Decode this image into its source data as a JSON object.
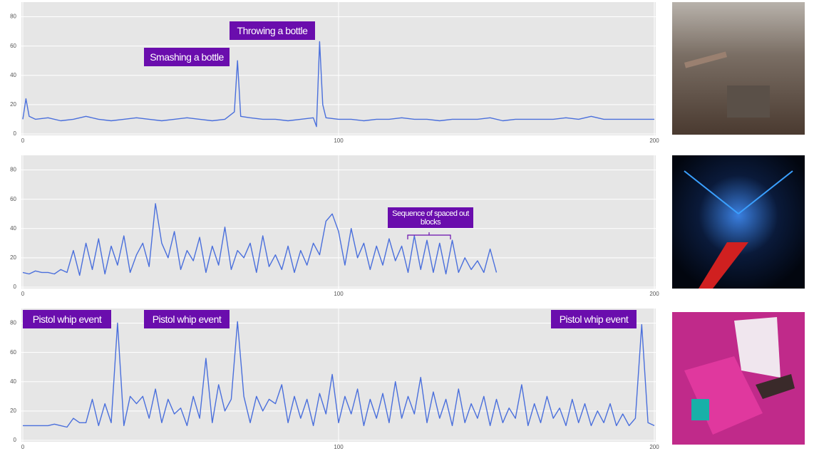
{
  "chart_data": [
    {
      "type": "line",
      "color": "#4a6fdc",
      "grid": true,
      "xlim": [
        0,
        200
      ],
      "ylim": [
        -1,
        90
      ],
      "xticks": [
        0,
        100,
        200
      ],
      "yticks": [
        0,
        20,
        40,
        60,
        80
      ],
      "annotations": [
        "Smashing a bottle",
        "Throwing a bottle"
      ],
      "x": [
        0,
        1,
        2,
        4,
        8,
        12,
        16,
        20,
        24,
        28,
        32,
        36,
        40,
        44,
        48,
        52,
        56,
        60,
        64,
        67,
        68,
        69,
        72,
        76,
        80,
        84,
        88,
        92,
        93,
        94,
        95,
        96,
        100,
        104,
        108,
        112,
        116,
        120,
        124,
        128,
        132,
        136,
        140,
        144,
        148,
        152,
        156,
        160,
        164,
        168,
        172,
        176,
        180,
        184,
        188,
        192,
        196,
        200
      ],
      "values": [
        10,
        24,
        12,
        10,
        11,
        9,
        10,
        12,
        10,
        9,
        10,
        11,
        10,
        9,
        10,
        11,
        10,
        9,
        10,
        15,
        50,
        12,
        11,
        10,
        10,
        9,
        10,
        11,
        5,
        63,
        20,
        11,
        10,
        10,
        9,
        10,
        10,
        11,
        10,
        10,
        9,
        10,
        10,
        10,
        11,
        9,
        10,
        10,
        10,
        10,
        11,
        10,
        12,
        10,
        10,
        10,
        10,
        10
      ]
    },
    {
      "type": "line",
      "color": "#4a6fdc",
      "grid": true,
      "xlim": [
        0,
        200
      ],
      "ylim": [
        -1,
        90
      ],
      "xticks": [
        0,
        100,
        200
      ],
      "yticks": [
        0,
        20,
        40,
        60,
        80
      ],
      "annotations": [
        "Sequence of spaced out blocks"
      ],
      "x": [
        0,
        2,
        4,
        6,
        8,
        10,
        12,
        14,
        16,
        18,
        20,
        22,
        24,
        26,
        28,
        30,
        32,
        34,
        36,
        38,
        40,
        42,
        44,
        46,
        48,
        50,
        52,
        54,
        56,
        58,
        60,
        62,
        64,
        66,
        68,
        70,
        72,
        74,
        76,
        78,
        80,
        82,
        84,
        86,
        88,
        90,
        92,
        94,
        96,
        98,
        100,
        102,
        104,
        106,
        108,
        110,
        112,
        114,
        116,
        118,
        120,
        122,
        124,
        126,
        128,
        130,
        132,
        134,
        136,
        138,
        140,
        142,
        144,
        146,
        148,
        150
      ],
      "values": [
        10,
        9,
        11,
        10,
        10,
        9,
        12,
        10,
        25,
        8,
        30,
        12,
        33,
        9,
        28,
        15,
        35,
        10,
        22,
        30,
        14,
        57,
        30,
        20,
        38,
        12,
        25,
        18,
        34,
        10,
        28,
        15,
        41,
        12,
        25,
        20,
        30,
        10,
        35,
        14,
        22,
        12,
        28,
        10,
        25,
        15,
        30,
        22,
        45,
        50,
        38,
        15,
        40,
        20,
        30,
        12,
        28,
        15,
        33,
        18,
        28,
        10,
        35,
        12,
        32,
        10,
        30,
        9,
        32,
        10,
        20,
        12,
        18,
        10,
        26,
        10
      ]
    },
    {
      "type": "line",
      "color": "#4a6fdc",
      "grid": true,
      "xlim": [
        0,
        200
      ],
      "ylim": [
        -1,
        90
      ],
      "xticks": [
        0,
        100,
        200
      ],
      "yticks": [
        0,
        20,
        40,
        60,
        80
      ],
      "annotations": [
        "Pistol whip event",
        "Pistol whip event",
        "Pistol whip event"
      ],
      "x": [
        0,
        2,
        4,
        6,
        8,
        10,
        12,
        14,
        16,
        18,
        20,
        22,
        24,
        26,
        28,
        30,
        32,
        34,
        36,
        38,
        40,
        42,
        44,
        46,
        48,
        50,
        52,
        54,
        56,
        58,
        60,
        62,
        64,
        66,
        68,
        70,
        72,
        74,
        76,
        78,
        80,
        82,
        84,
        86,
        88,
        90,
        92,
        94,
        96,
        98,
        100,
        102,
        104,
        106,
        108,
        110,
        112,
        114,
        116,
        118,
        120,
        122,
        124,
        126,
        128,
        130,
        132,
        134,
        136,
        138,
        140,
        142,
        144,
        146,
        148,
        150,
        152,
        154,
        156,
        158,
        160,
        162,
        164,
        166,
        168,
        170,
        172,
        174,
        176,
        178,
        180,
        182,
        184,
        186,
        188,
        190,
        192,
        194,
        196,
        198,
        200
      ],
      "values": [
        10,
        10,
        10,
        10,
        10,
        11,
        10,
        9,
        15,
        12,
        12,
        28,
        10,
        25,
        12,
        80,
        10,
        30,
        25,
        30,
        15,
        35,
        12,
        28,
        18,
        22,
        10,
        30,
        15,
        56,
        12,
        38,
        20,
        28,
        81,
        30,
        12,
        30,
        20,
        28,
        25,
        38,
        12,
        30,
        15,
        28,
        10,
        32,
        18,
        45,
        12,
        30,
        18,
        35,
        10,
        28,
        15,
        32,
        12,
        40,
        15,
        30,
        18,
        43,
        12,
        33,
        15,
        28,
        10,
        35,
        12,
        25,
        15,
        30,
        10,
        28,
        12,
        22,
        15,
        38,
        10,
        25,
        12,
        30,
        15,
        22,
        10,
        28,
        12,
        25,
        10,
        20,
        12,
        25,
        10,
        18,
        10,
        15,
        79,
        12,
        10
      ]
    }
  ]
}
